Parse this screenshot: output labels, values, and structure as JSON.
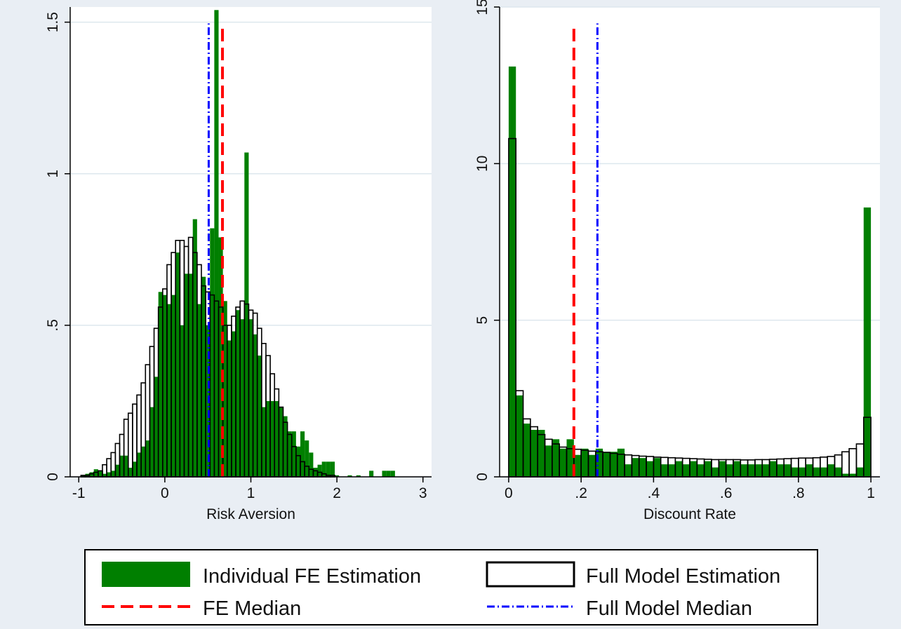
{
  "colors": {
    "background": "#e9eef4",
    "plot_background": "#ffffff",
    "grid": "#dde7ee",
    "fe_fill": "#007f00",
    "full_outline": "#000000",
    "fe_median": "#ff0000",
    "full_median": "#0000ff"
  },
  "legend": {
    "fe_estimation": "Individual FE Estimation",
    "full_estimation": "Full Model Estimation",
    "fe_median": "FE Median",
    "full_median": "Full Model Median"
  },
  "chart_data": [
    {
      "type": "bar",
      "subtype": "histogram",
      "xlabel": "Risk Aversion",
      "ylabel": "",
      "xlim": [
        -1.1,
        3.1
      ],
      "ylim": [
        0,
        1.55
      ],
      "xticks": [
        -1,
        0,
        1,
        2,
        3
      ],
      "xtick_labels": [
        "-1",
        "0",
        "1",
        "2",
        "3"
      ],
      "yticks": [
        0,
        0.5,
        1,
        1.5
      ],
      "ytick_labels": [
        "0",
        ".5",
        "1",
        "1.5"
      ],
      "grid": true,
      "bin_width": 0.05,
      "fe_median": 0.67,
      "full_median": 0.51,
      "series": [
        {
          "key": "fe",
          "x": [
            -0.95,
            -0.9,
            -0.85,
            -0.8,
            -0.75,
            -0.7,
            -0.65,
            -0.6,
            -0.55,
            -0.5,
            -0.45,
            -0.4,
            -0.35,
            -0.3,
            -0.25,
            -0.2,
            -0.15,
            -0.1,
            -0.05,
            0,
            0.05,
            0.1,
            0.15,
            0.2,
            0.25,
            0.3,
            0.35,
            0.4,
            0.45,
            0.5,
            0.55,
            0.6,
            0.65,
            0.7,
            0.75,
            0.8,
            0.85,
            0.9,
            0.95,
            1,
            1.05,
            1.1,
            1.15,
            1.2,
            1.25,
            1.3,
            1.35,
            1.4,
            1.45,
            1.5,
            1.55,
            1.6,
            1.65,
            1.7,
            1.75,
            1.8,
            1.85,
            1.9,
            1.95,
            2.0,
            2.15,
            2.25,
            2.4,
            2.55,
            2.6,
            2.65
          ],
          "values": [
            0.005,
            0.01,
            0.015,
            0.025,
            0.02,
            0.01,
            0.015,
            0.02,
            0.04,
            0.07,
            0.07,
            0.03,
            0.05,
            0.08,
            0.1,
            0.12,
            0.23,
            0.33,
            0.61,
            0.6,
            0.57,
            0.6,
            0.74,
            0.5,
            0.67,
            0.67,
            0.85,
            0.57,
            0.66,
            0.5,
            0.82,
            1.54,
            0.79,
            0.58,
            0.45,
            0.48,
            0.55,
            0.52,
            1.07,
            0.52,
            0.47,
            0.4,
            0.23,
            0.25,
            0.25,
            0.25,
            0.23,
            0.2,
            0.15,
            0.15,
            0.1,
            0.15,
            0.12,
            0.08,
            0.03,
            0.04,
            0.05,
            0.05,
            0.05,
            0.005,
            0.005,
            0.005,
            0.02,
            0.02,
            0.02,
            0.02
          ]
        },
        {
          "key": "full",
          "x": [
            -0.95,
            -0.9,
            -0.85,
            -0.8,
            -0.75,
            -0.7,
            -0.65,
            -0.6,
            -0.55,
            -0.5,
            -0.45,
            -0.4,
            -0.35,
            -0.3,
            -0.25,
            -0.2,
            -0.15,
            -0.1,
            -0.05,
            0,
            0.05,
            0.1,
            0.15,
            0.2,
            0.25,
            0.3,
            0.35,
            0.4,
            0.45,
            0.5,
            0.55,
            0.6,
            0.65,
            0.7,
            0.75,
            0.8,
            0.85,
            0.9,
            0.95,
            1,
            1.05,
            1.1,
            1.15,
            1.2,
            1.25,
            1.3,
            1.35,
            1.4,
            1.45,
            1.5,
            1.55,
            1.6,
            1.65,
            1.7,
            1.75,
            1.8,
            1.85,
            1.9,
            1.95
          ],
          "values": [
            0.005,
            0.005,
            0.01,
            0.015,
            0.02,
            0.04,
            0.06,
            0.08,
            0.11,
            0.14,
            0.19,
            0.21,
            0.24,
            0.27,
            0.31,
            0.37,
            0.43,
            0.49,
            0.56,
            0.62,
            0.7,
            0.74,
            0.78,
            0.78,
            0.76,
            0.79,
            0.74,
            0.7,
            0.63,
            0.61,
            0.6,
            0.58,
            0.56,
            0.5,
            0.5,
            0.53,
            0.56,
            0.58,
            0.57,
            0.55,
            0.54,
            0.49,
            0.44,
            0.4,
            0.34,
            0.29,
            0.23,
            0.18,
            0.14,
            0.1,
            0.07,
            0.05,
            0.035,
            0.025,
            0.02,
            0.015,
            0.01,
            0.005,
            0.005
          ]
        }
      ]
    },
    {
      "type": "bar",
      "subtype": "histogram",
      "xlabel": "Discount Rate",
      "ylabel": "",
      "xlim": [
        -0.025,
        1.025
      ],
      "ylim": [
        0,
        15
      ],
      "xticks": [
        0,
        0.2,
        0.4,
        0.6,
        0.8,
        1
      ],
      "xtick_labels": [
        "0",
        ".2",
        ".4",
        ".6",
        ".8",
        "1"
      ],
      "yticks": [
        0,
        5,
        10,
        15
      ],
      "ytick_labels": [
        "0",
        "5",
        "10",
        "15"
      ],
      "grid": true,
      "bin_width": 0.02,
      "fe_median": 0.18,
      "full_median": 0.245,
      "series": [
        {
          "key": "fe",
          "x": [
            0.01,
            0.03,
            0.05,
            0.07,
            0.09,
            0.11,
            0.13,
            0.15,
            0.17,
            0.19,
            0.21,
            0.23,
            0.25,
            0.27,
            0.29,
            0.31,
            0.33,
            0.35,
            0.37,
            0.39,
            0.41,
            0.43,
            0.45,
            0.47,
            0.49,
            0.51,
            0.53,
            0.55,
            0.57,
            0.59,
            0.61,
            0.63,
            0.65,
            0.67,
            0.69,
            0.71,
            0.73,
            0.75,
            0.77,
            0.79,
            0.81,
            0.83,
            0.85,
            0.87,
            0.89,
            0.91,
            0.93,
            0.95,
            0.97,
            0.99
          ],
          "values": [
            13.1,
            2.6,
            1.7,
            1.5,
            1.5,
            1.0,
            1.2,
            0.9,
            1.2,
            0.7,
            0.9,
            0.7,
            0.9,
            0.8,
            0.8,
            0.9,
            0.4,
            0.6,
            0.6,
            0.5,
            0.6,
            0.4,
            0.4,
            0.5,
            0.4,
            0.5,
            0.4,
            0.5,
            0.3,
            0.5,
            0.4,
            0.5,
            0.4,
            0.4,
            0.4,
            0.4,
            0.5,
            0.4,
            0.4,
            0.3,
            0.3,
            0.4,
            0.3,
            0.3,
            0.4,
            0.3,
            0.1,
            0.1,
            0.3,
            8.6
          ]
        },
        {
          "key": "full",
          "x": [
            0.01,
            0.03,
            0.05,
            0.07,
            0.09,
            0.11,
            0.13,
            0.15,
            0.17,
            0.19,
            0.21,
            0.23,
            0.25,
            0.27,
            0.29,
            0.31,
            0.33,
            0.35,
            0.37,
            0.39,
            0.41,
            0.43,
            0.45,
            0.47,
            0.49,
            0.51,
            0.53,
            0.55,
            0.57,
            0.59,
            0.61,
            0.63,
            0.65,
            0.67,
            0.69,
            0.71,
            0.73,
            0.75,
            0.77,
            0.79,
            0.81,
            0.83,
            0.85,
            0.87,
            0.89,
            0.91,
            0.93,
            0.95,
            0.97,
            0.99
          ],
          "values": [
            10.8,
            2.75,
            1.85,
            1.6,
            1.35,
            1.2,
            1.05,
            0.95,
            0.9,
            0.88,
            0.85,
            0.82,
            0.8,
            0.78,
            0.75,
            0.72,
            0.7,
            0.68,
            0.66,
            0.65,
            0.63,
            0.62,
            0.61,
            0.6,
            0.59,
            0.58,
            0.57,
            0.56,
            0.55,
            0.55,
            0.55,
            0.55,
            0.54,
            0.54,
            0.55,
            0.55,
            0.56,
            0.57,
            0.58,
            0.59,
            0.6,
            0.6,
            0.61,
            0.63,
            0.65,
            0.7,
            0.8,
            0.9,
            1.05,
            1.9
          ]
        }
      ]
    }
  ]
}
